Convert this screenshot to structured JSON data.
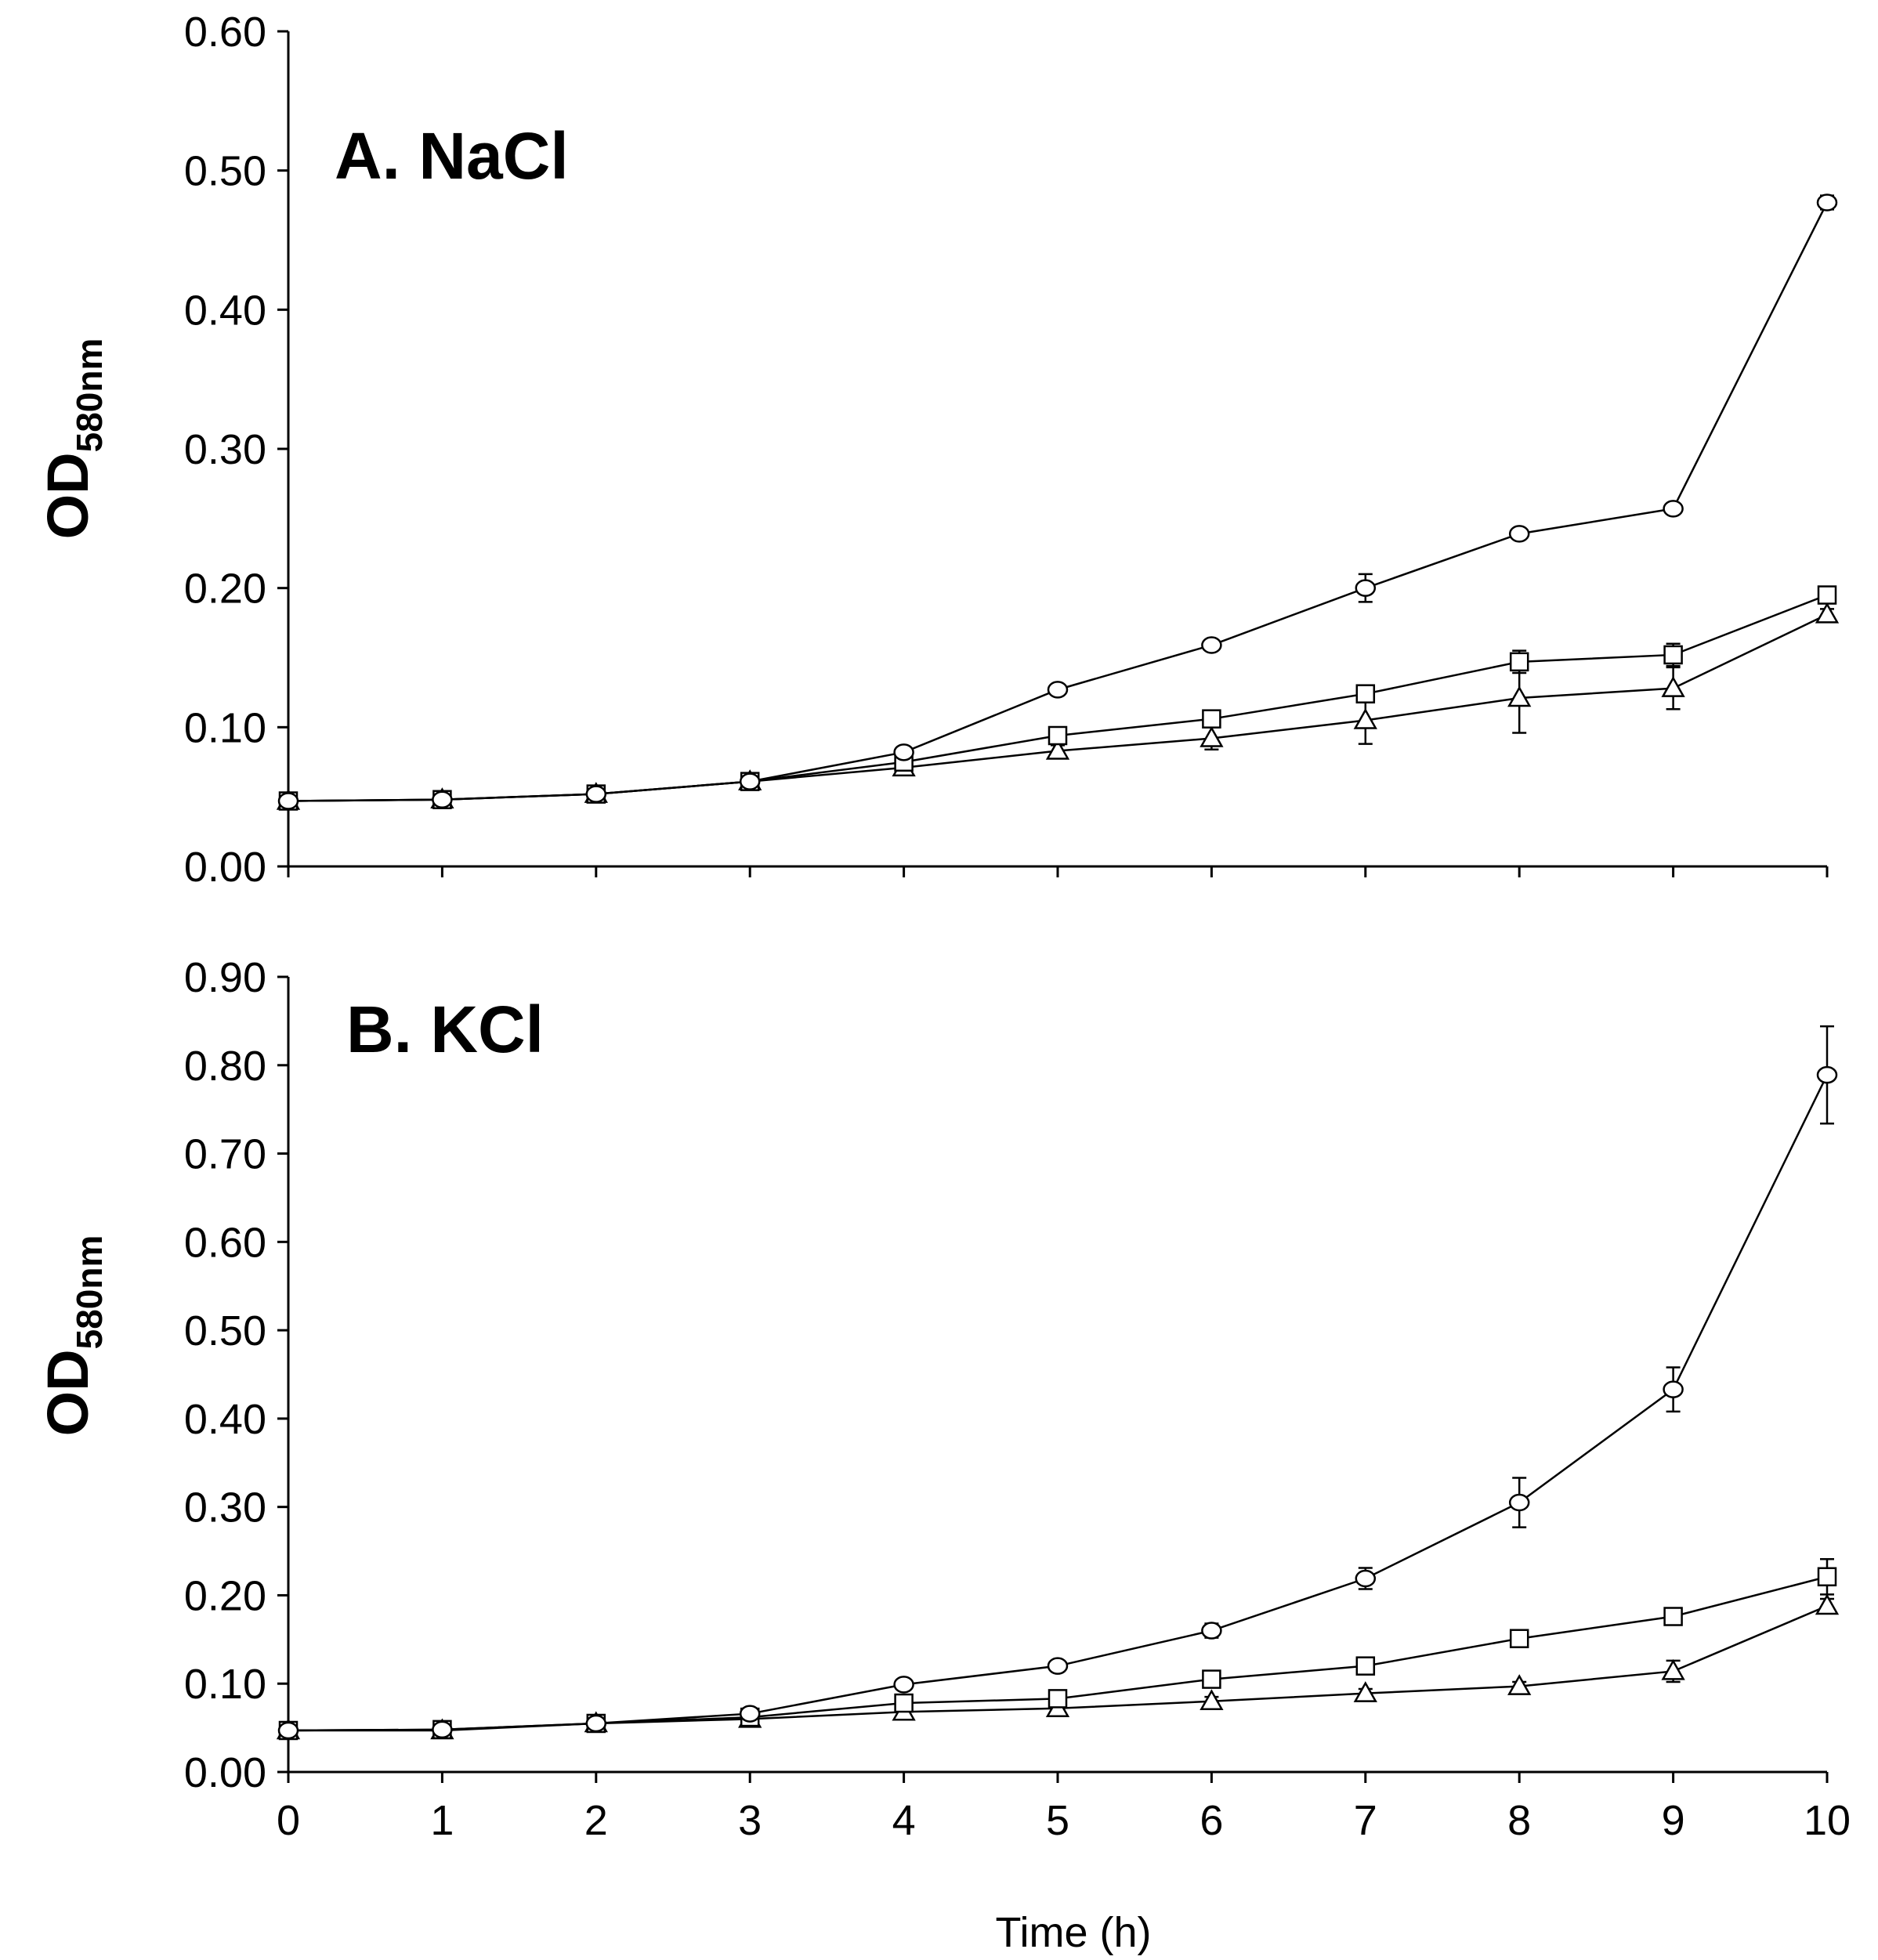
{
  "chart_data": [
    {
      "type": "line",
      "title": "A. NaCl",
      "xlabel": "",
      "ylabel": "OD",
      "ylabel_sub": "580nm",
      "x": [
        0,
        1,
        2,
        3,
        4,
        5,
        6,
        7,
        8,
        9,
        10
      ],
      "xlim": [
        0,
        10
      ],
      "ylim": [
        0,
        0.6
      ],
      "y_ticks": [
        "0.00",
        "0.10",
        "0.20",
        "0.30",
        "0.40",
        "0.50",
        "0.60"
      ],
      "x_tick_labels_shown": false,
      "grid": false,
      "series": [
        {
          "name": "circle",
          "marker": "circle",
          "values": [
            0.047,
            0.048,
            0.052,
            0.061,
            0.082,
            0.127,
            0.159,
            0.2,
            0.239,
            0.257,
            0.477
          ],
          "errors": [
            0,
            0,
            0,
            0,
            0.002,
            0.002,
            0.002,
            0.01,
            0.003,
            0.003,
            0.005
          ]
        },
        {
          "name": "square",
          "marker": "square",
          "values": [
            0.047,
            0.048,
            0.052,
            0.061,
            0.075,
            0.094,
            0.106,
            0.124,
            0.147,
            0.152,
            0.195
          ],
          "errors": [
            0,
            0,
            0,
            0,
            0.002,
            0.003,
            0.004,
            0.003,
            0.008,
            0.008,
            0.004
          ]
        },
        {
          "name": "triangle",
          "marker": "triangle",
          "values": [
            0.047,
            0.048,
            0.052,
            0.061,
            0.071,
            0.083,
            0.092,
            0.105,
            0.121,
            0.128,
            0.181
          ],
          "errors": [
            0,
            0,
            0,
            0,
            0.003,
            0.004,
            0.008,
            0.017,
            0.025,
            0.015,
            0.004
          ]
        }
      ]
    },
    {
      "type": "line",
      "title": "B. KCl",
      "xlabel": "Time (h)",
      "ylabel": "OD",
      "ylabel_sub": "580nm",
      "x": [
        0,
        1,
        2,
        3,
        4,
        5,
        6,
        7,
        8,
        9,
        10
      ],
      "xlim": [
        0,
        10
      ],
      "ylim": [
        0,
        0.9
      ],
      "y_ticks": [
        "0.00",
        "0.10",
        "0.20",
        "0.30",
        "0.40",
        "0.50",
        "0.60",
        "0.70",
        "0.80",
        "0.90"
      ],
      "x_ticks": [
        "0",
        "1",
        "2",
        "3",
        "4",
        "5",
        "6",
        "7",
        "8",
        "9",
        "10"
      ],
      "grid": false,
      "series": [
        {
          "name": "circle",
          "marker": "circle",
          "values": [
            0.047,
            0.048,
            0.055,
            0.066,
            0.099,
            0.12,
            0.16,
            0.219,
            0.305,
            0.433,
            0.789
          ],
          "errors": [
            0,
            0,
            0,
            0,
            0.003,
            0.003,
            0.008,
            0.012,
            0.028,
            0.025,
            0.055
          ]
        },
        {
          "name": "square",
          "marker": "square",
          "values": [
            0.047,
            0.048,
            0.055,
            0.062,
            0.078,
            0.083,
            0.105,
            0.12,
            0.151,
            0.176,
            0.221
          ],
          "errors": [
            0,
            0,
            0,
            0,
            0.003,
            0.003,
            0.008,
            0.004,
            0.004,
            0.004,
            0.02
          ]
        },
        {
          "name": "triangle",
          "marker": "triangle",
          "values": [
            0.047,
            0.047,
            0.055,
            0.06,
            0.068,
            0.072,
            0.08,
            0.089,
            0.097,
            0.114,
            0.188
          ],
          "errors": [
            0,
            0,
            0,
            0,
            0.004,
            0.004,
            0.005,
            0.005,
            0.005,
            0.012,
            0.008
          ]
        }
      ]
    }
  ]
}
